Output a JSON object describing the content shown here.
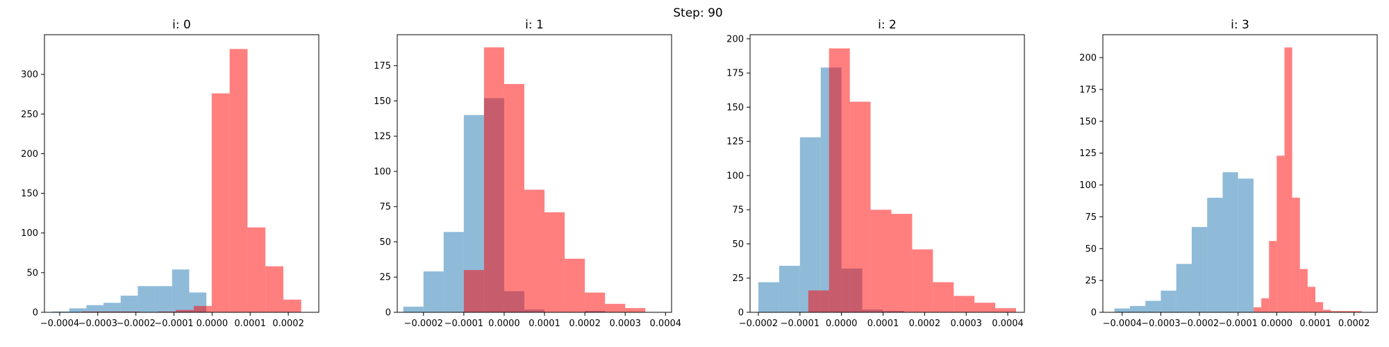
{
  "figure": {
    "suptitle": "Step: 90"
  },
  "colors": {
    "blue": "#1f77b4",
    "red": "#ff0000",
    "blue_alpha": 0.5,
    "red_alpha": 0.5
  },
  "chart_data": [
    {
      "type": "histogram",
      "title": "i: 0",
      "xlim": [
        -0.00044,
        0.00028
      ],
      "ylim": [
        0,
        350
      ],
      "xticks": [
        -0.0004,
        -0.0003,
        -0.0002,
        -0.0001,
        0.0,
        0.0001,
        0.0002
      ],
      "xtick_labels": [
        "−0.0004",
        "−0.0003",
        "−0.0002",
        "−0.0001",
        "0.0000",
        "0.0001",
        "0.0002"
      ],
      "yticks": [
        0,
        50,
        100,
        150,
        200,
        250,
        300
      ],
      "ytick_labels": [
        "0",
        "50",
        "100",
        "150",
        "200",
        "250",
        "300"
      ],
      "series": [
        {
          "color": "blue",
          "bin_edges": [
            -0.00042,
            -0.000375,
            -0.00033,
            -0.000285,
            -0.00024,
            -0.000195,
            -0.00015,
            -0.000105,
            -6e-05,
            -1.5e-05
          ],
          "counts": [
            1,
            5,
            9,
            12,
            21,
            33,
            33,
            54,
            25
          ]
        },
        {
          "color": "red",
          "bin_edges": [
            -0.00034,
            -0.000283,
            -0.000236,
            -0.000189,
            -0.000142,
            -9.5e-05,
            -4.8e-05,
            -1e-06,
            4.6e-05,
            9.3e-05,
            0.00014,
            0.000187,
            0.000234
          ],
          "counts": [
            1,
            1,
            1,
            0,
            1,
            3,
            8,
            276,
            332,
            107,
            58,
            16
          ]
        }
      ]
    },
    {
      "type": "histogram",
      "title": "i: 1",
      "xlim": [
        -0.000265,
        0.000415
      ],
      "ylim": [
        0,
        197
      ],
      "xticks": [
        -0.0002,
        -0.0001,
        0.0,
        0.0001,
        0.0002,
        0.0003,
        0.0004
      ],
      "xtick_labels": [
        "−0.0002",
        "−0.0001",
        "0.0000",
        "0.0001",
        "0.0002",
        "0.0003",
        "0.0004"
      ],
      "yticks": [
        0,
        25,
        50,
        75,
        100,
        125,
        150,
        175
      ],
      "ytick_labels": [
        "0",
        "25",
        "50",
        "75",
        "100",
        "125",
        "150",
        "175"
      ],
      "series": [
        {
          "color": "blue",
          "bin_edges": [
            -0.00025,
            -0.0002,
            -0.00015,
            -0.0001,
            -5e-05,
            0.0,
            5e-05,
            0.0001,
            0.00015,
            0.0002,
            0.00025
          ],
          "counts": [
            4,
            29,
            57,
            140,
            152,
            15,
            2,
            0,
            0,
            1
          ]
        },
        {
          "color": "red",
          "bin_edges": [
            -0.0001,
            -5e-05,
            0.0,
            5e-05,
            0.0001,
            0.00015,
            0.0002,
            0.00025,
            0.0003,
            0.00035,
            0.0004
          ],
          "counts": [
            30,
            188,
            162,
            87,
            71,
            38,
            14,
            6,
            3,
            0
          ]
        }
      ]
    },
    {
      "type": "histogram",
      "title": "i: 2",
      "xlim": [
        -0.00022,
        0.00044
      ],
      "ylim": [
        0,
        203
      ],
      "xticks": [
        -0.0002,
        -0.0001,
        0.0,
        0.0001,
        0.0002,
        0.0003,
        0.0004
      ],
      "xtick_labels": [
        "−0.0002",
        "−0.0001",
        "0.0000",
        "0.0001",
        "0.0002",
        "0.0003",
        "0.0004"
      ],
      "yticks": [
        0,
        25,
        50,
        75,
        100,
        125,
        150,
        175,
        200
      ],
      "ytick_labels": [
        "0",
        "25",
        "50",
        "75",
        "100",
        "125",
        "150",
        "175",
        "200"
      ],
      "series": [
        {
          "color": "blue",
          "bin_edges": [
            -0.0002,
            -0.00015,
            -0.0001,
            -5e-05,
            0.0,
            5e-05,
            0.0001,
            0.00015
          ],
          "counts": [
            22,
            34,
            128,
            179,
            32,
            2,
            1
          ]
        },
        {
          "color": "red",
          "bin_edges": [
            -8e-05,
            -3e-05,
            2e-05,
            7e-05,
            0.00012,
            0.00017,
            0.00022,
            0.00027,
            0.00032,
            0.00037,
            0.00042
          ],
          "counts": [
            16,
            193,
            154,
            75,
            72,
            46,
            22,
            12,
            7,
            3
          ]
        }
      ]
    },
    {
      "type": "histogram",
      "title": "i: 3",
      "xlim": [
        -0.00045,
        0.00026
      ],
      "ylim": [
        0,
        218
      ],
      "xticks": [
        -0.0004,
        -0.0003,
        -0.0002,
        -0.0001,
        0.0,
        0.0001,
        0.0002
      ],
      "xtick_labels": [
        "−0.0004",
        "−0.0003",
        "−0.0002",
        "−0.0001",
        "0.0000",
        "0.0001",
        "0.0002"
      ],
      "yticks": [
        0,
        25,
        50,
        75,
        100,
        125,
        150,
        175,
        200
      ],
      "ytick_labels": [
        "0",
        "25",
        "50",
        "75",
        "100",
        "125",
        "150",
        "175",
        "200"
      ],
      "series": [
        {
          "color": "blue",
          "bin_edges": [
            -0.00042,
            -0.00038,
            -0.00034,
            -0.0003,
            -0.00026,
            -0.00022,
            -0.00018,
            -0.00014,
            -0.0001,
            -6e-05,
            -2e-05,
            2e-05
          ],
          "counts": [
            3,
            5,
            9,
            17,
            38,
            67,
            90,
            110,
            105,
            0,
            0
          ]
        },
        {
          "color": "red",
          "bin_edges": [
            -6e-05,
            -4e-05,
            -2e-05,
            0.0,
            2e-05,
            4e-05,
            6e-05,
            8e-05,
            0.0001,
            0.00012,
            0.00014,
            0.00016,
            0.00018,
            0.00022
          ],
          "counts": [
            4,
            11,
            56,
            123,
            208,
            90,
            34,
            20,
            8,
            2,
            1,
            1,
            1
          ]
        }
      ]
    }
  ]
}
